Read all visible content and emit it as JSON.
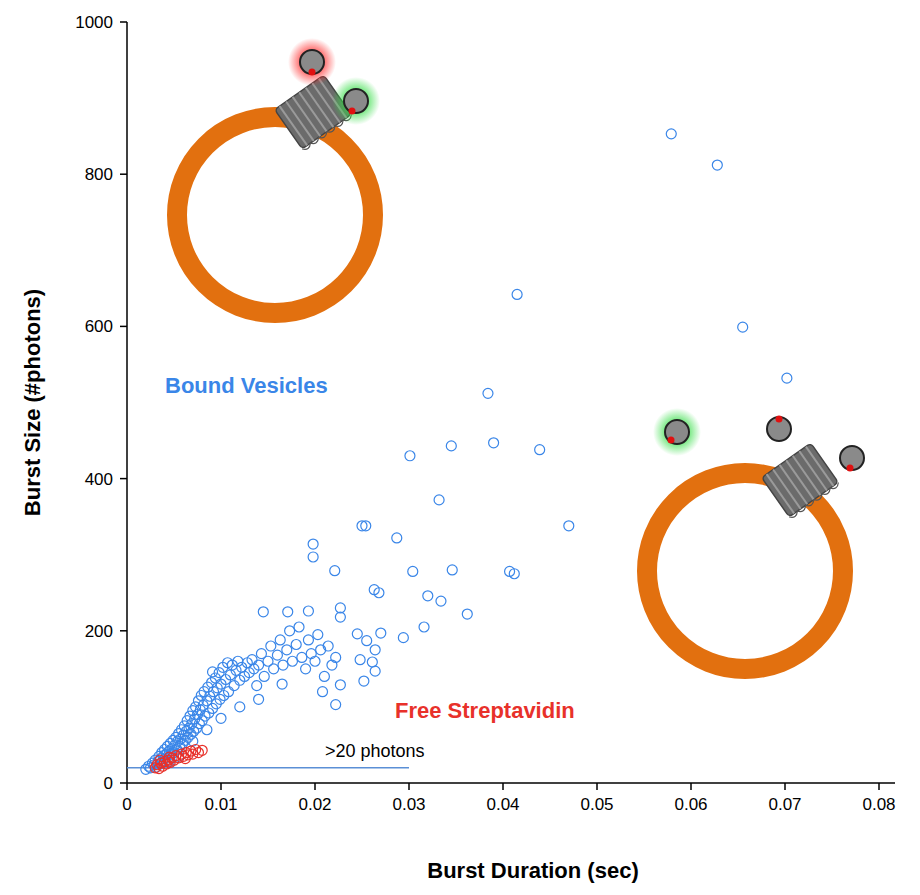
{
  "chart_data": {
    "type": "scatter",
    "x_label": "Burst Duration (sec)",
    "y_label": "Burst Size (#photons)",
    "xlim": [
      0,
      0.08
    ],
    "ylim": [
      0,
      1000
    ],
    "xticks": [
      0,
      0.01,
      0.02,
      0.03,
      0.04,
      0.05,
      0.06,
      0.07,
      0.08
    ],
    "yticks": [
      0,
      200,
      400,
      600,
      800,
      1000
    ],
    "grid": false,
    "series": [
      {
        "name": "Bound Vesicles",
        "color": "#3a86e8",
        "marker": "circle-open",
        "x": [
          0.0579,
          0.0628,
          0.0415,
          0.0655,
          0.0702,
          0.0384,
          0.039,
          0.0345,
          0.0439,
          0.0301,
          0.0332,
          0.047,
          0.025,
          0.0254,
          0.0287,
          0.0198,
          0.0198,
          0.0346,
          0.0304,
          0.0407,
          0.0412,
          0.0221,
          0.0263,
          0.0268,
          0.032,
          0.0334,
          0.0362,
          0.0316,
          0.0294,
          0.027,
          0.0193,
          0.0171,
          0.0145,
          0.0227,
          0.0227,
          0.0245,
          0.0255,
          0.0264,
          0.0261,
          0.0264,
          0.0252,
          0.0248,
          0.0227,
          0.0091,
          0.0222,
          0.002,
          0.0023,
          0.0025,
          0.0027,
          0.0029,
          0.003,
          0.0031,
          0.0033,
          0.0034,
          0.0035,
          0.0036,
          0.0037,
          0.0038,
          0.0039,
          0.004,
          0.0041,
          0.0042,
          0.0043,
          0.0044,
          0.0045,
          0.0046,
          0.0047,
          0.0048,
          0.0049,
          0.005,
          0.0051,
          0.0052,
          0.0053,
          0.0054,
          0.0055,
          0.0056,
          0.0057,
          0.0058,
          0.0059,
          0.006,
          0.0061,
          0.0062,
          0.0063,
          0.0064,
          0.0065,
          0.0066,
          0.0067,
          0.0068,
          0.0069,
          0.007,
          0.0071,
          0.0072,
          0.0073,
          0.0074,
          0.0075,
          0.0076,
          0.0077,
          0.0078,
          0.0079,
          0.008,
          0.0081,
          0.0082,
          0.0083,
          0.0085,
          0.0086,
          0.0087,
          0.0088,
          0.009,
          0.0091,
          0.0092,
          0.0094,
          0.0095,
          0.0096,
          0.0098,
          0.0099,
          0.01,
          0.0102,
          0.0103,
          0.0105,
          0.0107,
          0.0108,
          0.011,
          0.0112,
          0.0114,
          0.0116,
          0.0118,
          0.012,
          0.0122,
          0.0125,
          0.0128,
          0.013,
          0.0133,
          0.0135,
          0.0138,
          0.014,
          0.0143,
          0.0146,
          0.015,
          0.0153,
          0.0156,
          0.016,
          0.0163,
          0.0166,
          0.017,
          0.0173,
          0.0176,
          0.018,
          0.0183,
          0.0186,
          0.019,
          0.0193,
          0.0196,
          0.02,
          0.0203,
          0.0206,
          0.021,
          0.0214,
          0.0218,
          0.0208,
          0.0222,
          0.0165,
          0.014,
          0.012,
          0.01,
          0.0085,
          0.007,
          0.0055,
          0.0045
        ],
        "values": [
          853,
          812,
          642,
          599,
          532,
          512,
          447,
          443,
          438,
          430,
          372,
          338,
          338,
          338,
          322,
          314,
          297,
          280,
          278,
          278,
          275,
          279,
          254,
          250,
          246,
          239,
          222,
          205,
          191,
          197,
          226,
          225,
          225,
          230,
          218,
          196,
          187,
          175,
          159,
          147,
          134,
          162,
          129,
          146,
          103,
          18,
          22,
          20,
          26,
          24,
          30,
          21,
          28,
          35,
          25,
          32,
          40,
          29,
          36,
          44,
          33,
          38,
          48,
          30,
          42,
          52,
          37,
          45,
          56,
          40,
          50,
          60,
          44,
          55,
          65,
          48,
          58,
          70,
          52,
          63,
          75,
          56,
          68,
          82,
          60,
          72,
          88,
          64,
          78,
          95,
          68,
          84,
          100,
          72,
          90,
          108,
          78,
          96,
          115,
          82,
          102,
          120,
          88,
          108,
          126,
          92,
          114,
          132,
          98,
          120,
          138,
          104,
          125,
          145,
          110,
          130,
          152,
          115,
          136,
          158,
          120,
          142,
          155,
          128,
          148,
          160,
          135,
          152,
          140,
          158,
          145,
          162,
          150,
          128,
          155,
          170,
          140,
          160,
          180,
          150,
          168,
          188,
          155,
          175,
          200,
          160,
          182,
          205,
          165,
          150,
          188,
          170,
          160,
          195,
          175,
          140,
          180,
          155,
          120,
          165,
          130,
          110,
          100,
          85,
          70,
          55,
          35,
          28
        ]
      },
      {
        "name": "Free Streptavidin",
        "color": "#e8312a",
        "marker": "circle-open",
        "x": [
          0.003,
          0.0032,
          0.0034,
          0.0036,
          0.0038,
          0.004,
          0.0042,
          0.0044,
          0.0046,
          0.0048,
          0.005,
          0.0052,
          0.0055,
          0.0058,
          0.006,
          0.0063,
          0.0065,
          0.0068,
          0.007,
          0.0073,
          0.0076,
          0.008,
          0.0035,
          0.0045,
          0.0062
        ],
        "values": [
          20,
          24,
          19,
          26,
          22,
          28,
          25,
          30,
          27,
          33,
          30,
          36,
          33,
          38,
          35,
          40,
          37,
          42,
          38,
          44,
          40,
          43,
          30,
          34,
          32
        ]
      }
    ],
    "annotations": [
      {
        "text": ">20 photons",
        "y": 20,
        "x": [
          0,
          0.03
        ]
      }
    ]
  }
}
